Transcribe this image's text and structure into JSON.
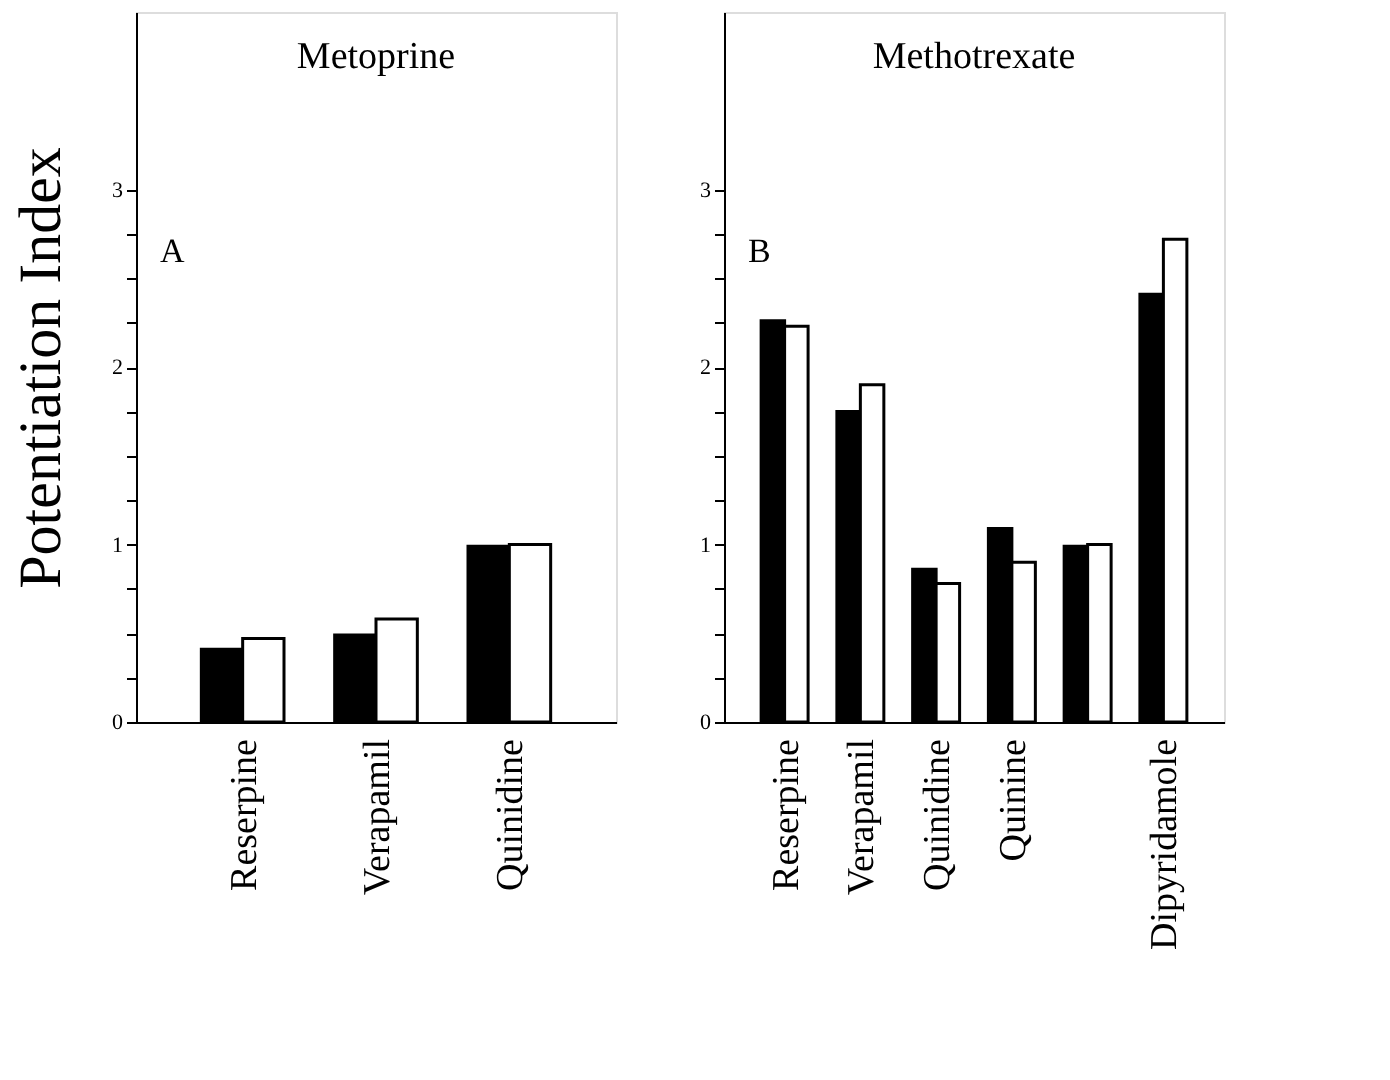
{
  "chart_data": [
    {
      "type": "bar",
      "title": "Metoprine",
      "ylabel": "Potentiation Index",
      "annotations": [
        "A"
      ],
      "categories": [
        "Reserpine",
        "Verapamil",
        "Quinidine"
      ],
      "series": [
        {
          "color": "#000000",
          "values": [
            0.41,
            0.49,
            0.99
          ]
        },
        {
          "color": "#ffffff",
          "values": [
            0.47,
            0.58,
            1.0
          ]
        }
      ],
      "ylim": [
        0,
        4
      ],
      "yticks": [
        0,
        {
          "value": 0.25,
          "label": null
        },
        {
          "value": 0.5,
          "label": null
        },
        {
          "value": 0.75,
          "label": null
        },
        1,
        {
          "value": 1.25,
          "label": null
        },
        {
          "value": 1.5,
          "label": null
        },
        {
          "value": 1.75,
          "label": null
        },
        2,
        {
          "value": 2.25,
          "label": null
        },
        {
          "value": 2.5,
          "label": null
        },
        {
          "value": 2.75,
          "label": null
        },
        3
      ],
      "grid": false,
      "legend": false
    },
    {
      "type": "bar",
      "title": "Methotrexate",
      "annotations": [
        "B"
      ],
      "categories": [
        "Reserpine",
        "Verapamil",
        "Quinidine",
        "Quinine",
        null,
        "Dipyridamole"
      ],
      "series": [
        {
          "color": "#000000",
          "values": [
            2.26,
            1.75,
            0.86,
            1.09,
            0.99,
            2.41
          ]
        },
        {
          "color": "#ffffff",
          "values": [
            2.23,
            1.9,
            0.78,
            0.9,
            1.0,
            2.72
          ]
        }
      ],
      "ylim": [
        0,
        4
      ],
      "yticks": [
        0,
        {
          "value": 0.25,
          "label": null
        },
        {
          "value": 0.5,
          "label": null
        },
        {
          "value": 0.75,
          "label": null
        },
        1,
        {
          "value": 1.25,
          "label": null
        },
        {
          "value": 1.5,
          "label": null
        },
        {
          "value": 1.75,
          "label": null
        },
        2,
        {
          "value": 2.25,
          "label": null
        },
        {
          "value": 2.5,
          "label": null
        },
        {
          "value": 2.75,
          "label": null
        },
        3
      ],
      "grid": false,
      "legend": false
    }
  ]
}
